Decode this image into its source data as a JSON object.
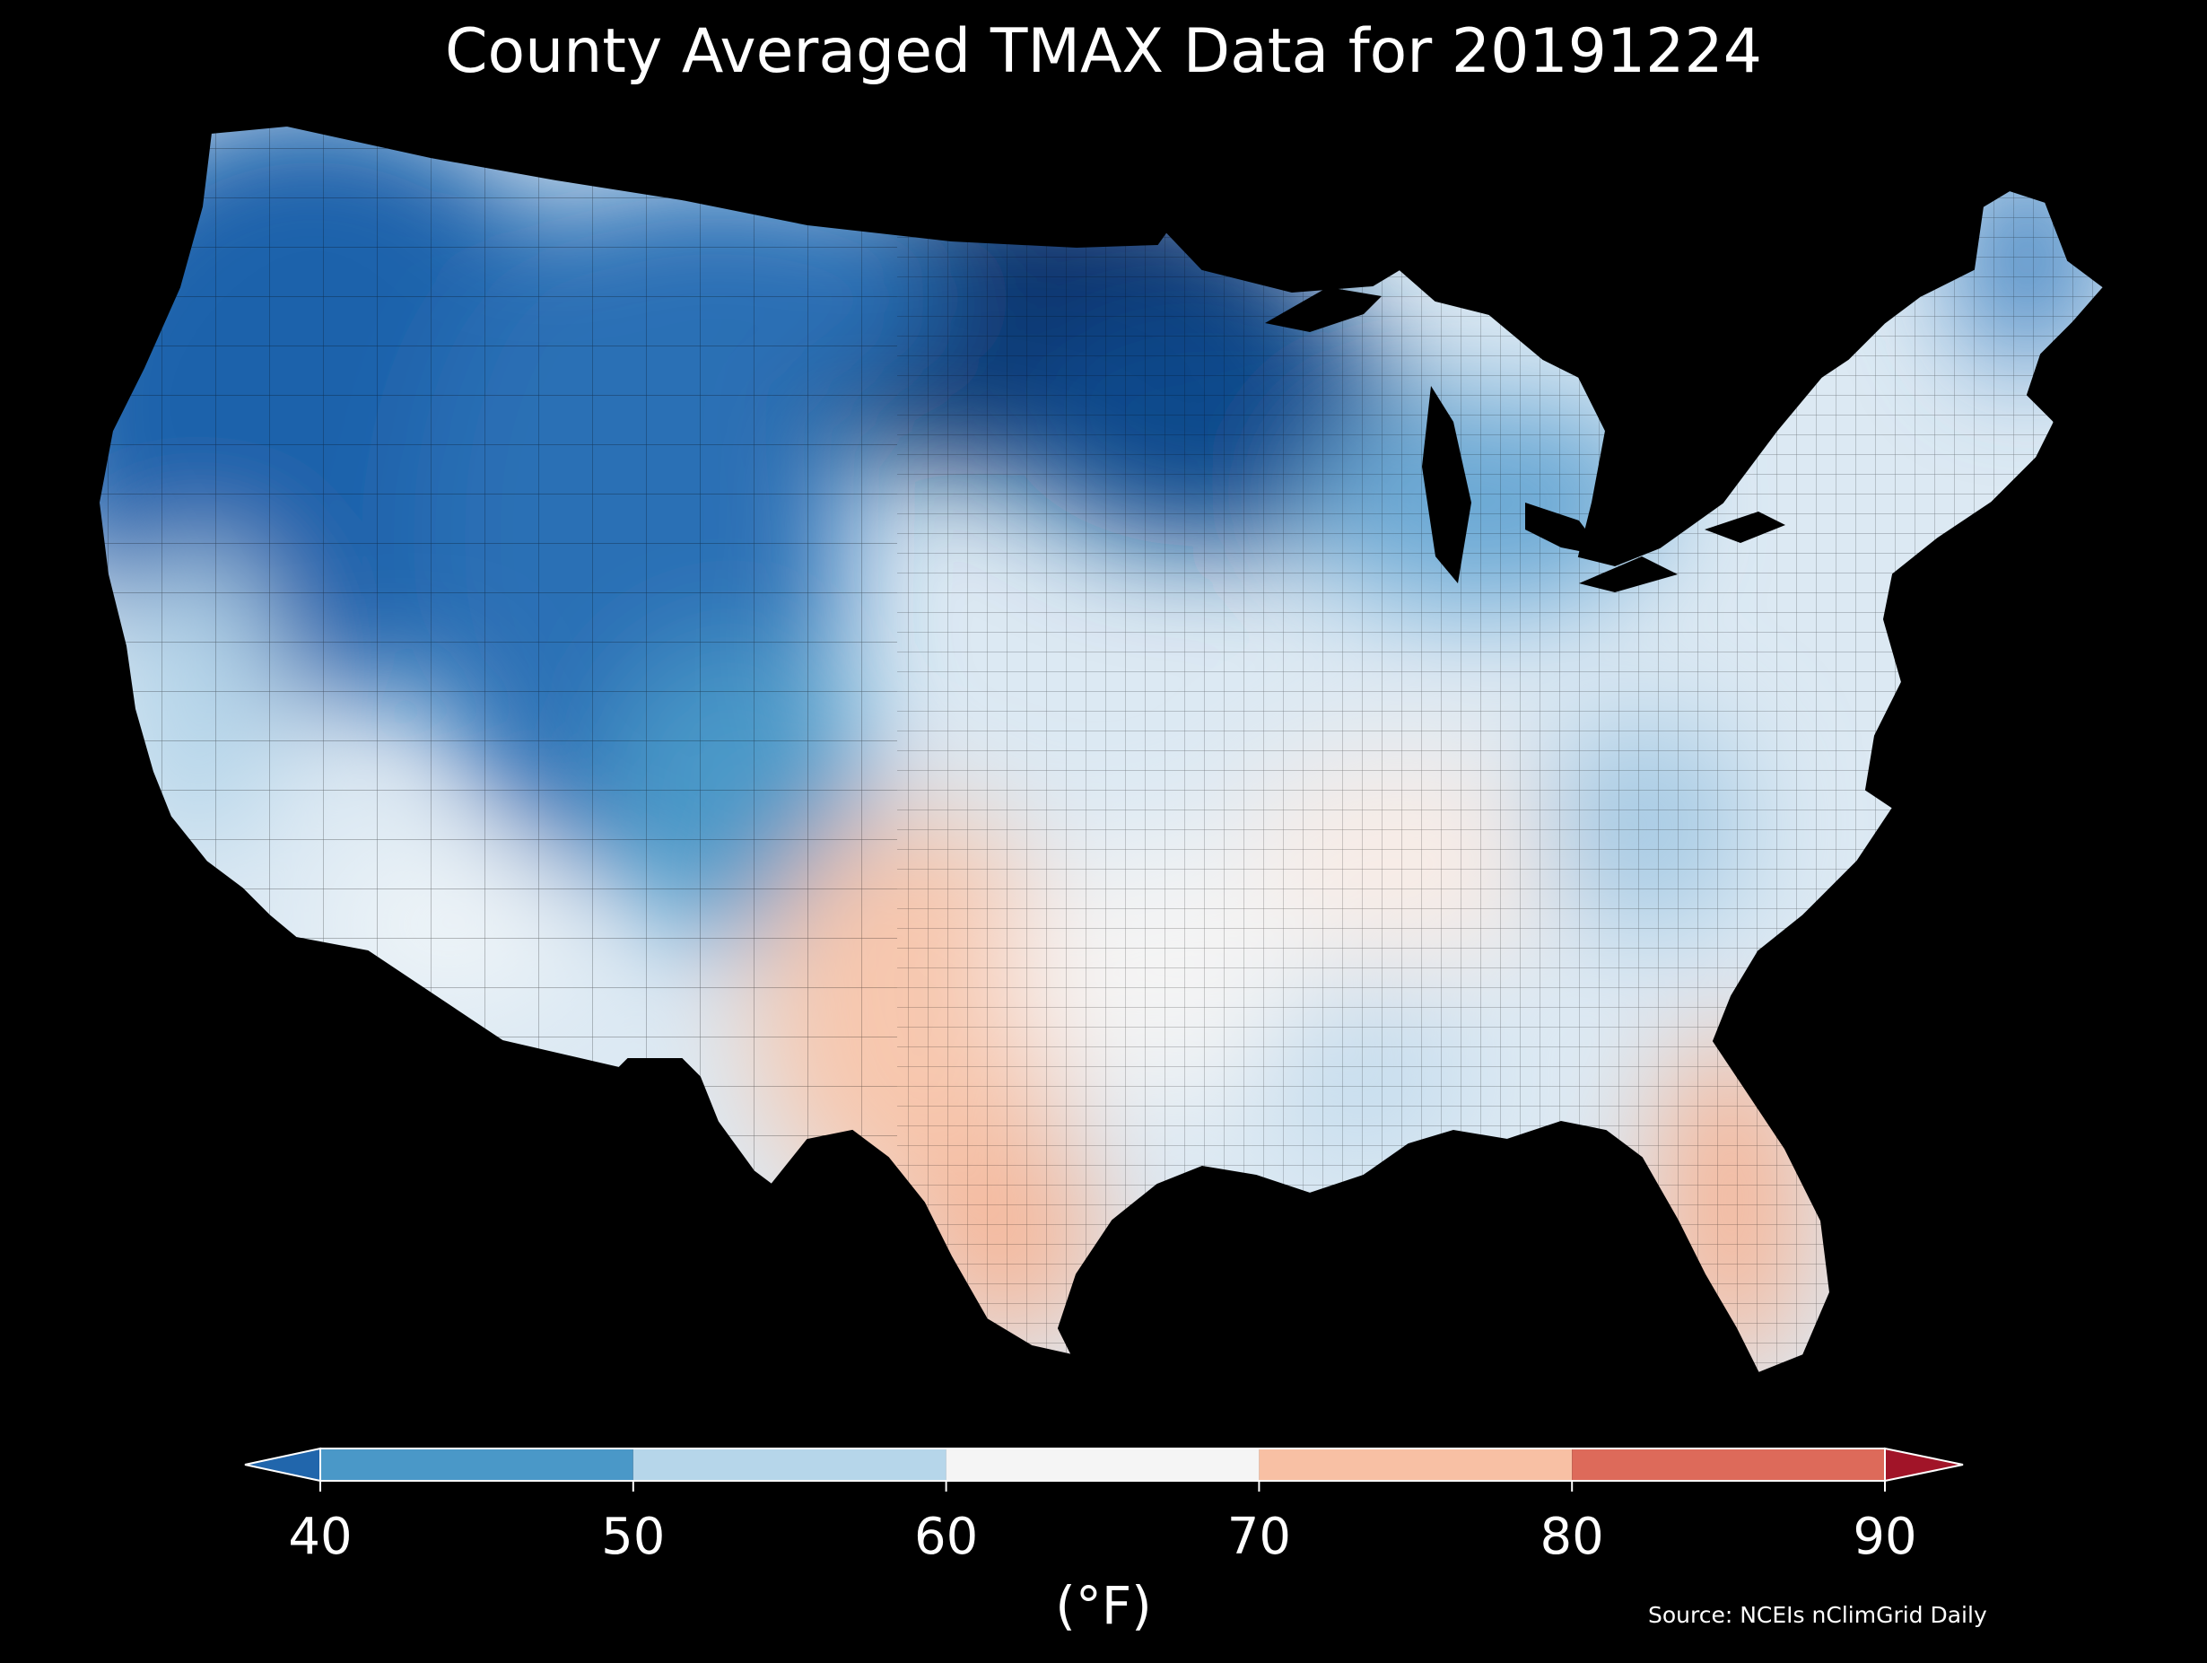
{
  "title": "County Averaged TMAX Data for 20191224",
  "source": "Source: NCEIs nClimGrid Daily",
  "colorbar": {
    "label": "(°F)",
    "ticks": [
      "40",
      "50",
      "60",
      "70",
      "80",
      "90"
    ],
    "segments": [
      {
        "from": 40,
        "to": 50,
        "color": "#4a98c8"
      },
      {
        "from": 50,
        "to": 60,
        "color": "#b6d6ea"
      },
      {
        "from": 60,
        "to": 70,
        "color": "#f5f5f5"
      },
      {
        "from": 70,
        "to": 80,
        "color": "#f8c0a4"
      },
      {
        "from": 80,
        "to": 90,
        "color": "#dd6a5a"
      }
    ],
    "under_color": "#2166ac",
    "over_color": "#a11428"
  },
  "map_colors": {
    "background": "#000000",
    "coldest": "#08306b",
    "cold": "#1f62ab",
    "cool": "#4a98c8",
    "mild": "#b6d6ea",
    "neutral": "#f5f5f5",
    "warm": "#f8c0a4",
    "water": "#000000"
  }
}
